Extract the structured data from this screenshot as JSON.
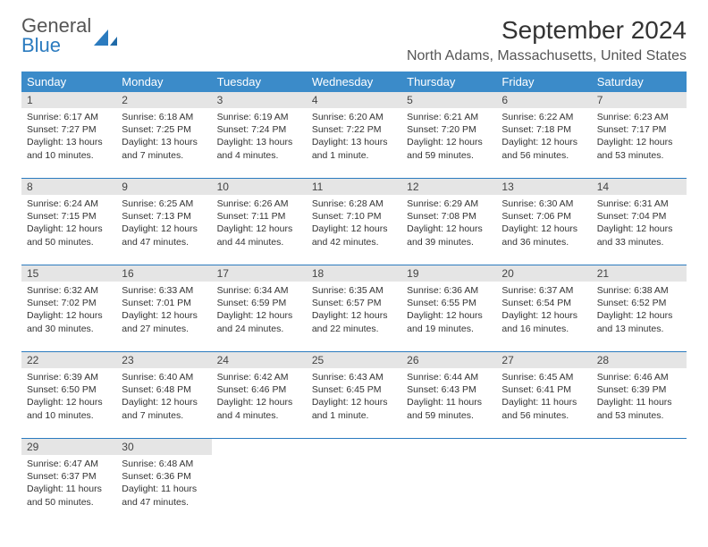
{
  "logo": {
    "text1": "General",
    "text2": "Blue"
  },
  "title": "September 2024",
  "location": "North Adams, Massachusetts, United States",
  "colors": {
    "header_bg": "#3b8bc9",
    "header_text": "#ffffff",
    "daynum_bg": "#e5e5e5",
    "rule": "#2b7bbf",
    "logo_accent": "#2b7bbf"
  },
  "day_headers": [
    "Sunday",
    "Monday",
    "Tuesday",
    "Wednesday",
    "Thursday",
    "Friday",
    "Saturday"
  ],
  "weeks": [
    {
      "nums": [
        "1",
        "2",
        "3",
        "4",
        "5",
        "6",
        "7"
      ],
      "cells": [
        {
          "sunrise": "Sunrise: 6:17 AM",
          "sunset": "Sunset: 7:27 PM",
          "day1": "Daylight: 13 hours",
          "day2": "and 10 minutes."
        },
        {
          "sunrise": "Sunrise: 6:18 AM",
          "sunset": "Sunset: 7:25 PM",
          "day1": "Daylight: 13 hours",
          "day2": "and 7 minutes."
        },
        {
          "sunrise": "Sunrise: 6:19 AM",
          "sunset": "Sunset: 7:24 PM",
          "day1": "Daylight: 13 hours",
          "day2": "and 4 minutes."
        },
        {
          "sunrise": "Sunrise: 6:20 AM",
          "sunset": "Sunset: 7:22 PM",
          "day1": "Daylight: 13 hours",
          "day2": "and 1 minute."
        },
        {
          "sunrise": "Sunrise: 6:21 AM",
          "sunset": "Sunset: 7:20 PM",
          "day1": "Daylight: 12 hours",
          "day2": "and 59 minutes."
        },
        {
          "sunrise": "Sunrise: 6:22 AM",
          "sunset": "Sunset: 7:18 PM",
          "day1": "Daylight: 12 hours",
          "day2": "and 56 minutes."
        },
        {
          "sunrise": "Sunrise: 6:23 AM",
          "sunset": "Sunset: 7:17 PM",
          "day1": "Daylight: 12 hours",
          "day2": "and 53 minutes."
        }
      ]
    },
    {
      "nums": [
        "8",
        "9",
        "10",
        "11",
        "12",
        "13",
        "14"
      ],
      "cells": [
        {
          "sunrise": "Sunrise: 6:24 AM",
          "sunset": "Sunset: 7:15 PM",
          "day1": "Daylight: 12 hours",
          "day2": "and 50 minutes."
        },
        {
          "sunrise": "Sunrise: 6:25 AM",
          "sunset": "Sunset: 7:13 PM",
          "day1": "Daylight: 12 hours",
          "day2": "and 47 minutes."
        },
        {
          "sunrise": "Sunrise: 6:26 AM",
          "sunset": "Sunset: 7:11 PM",
          "day1": "Daylight: 12 hours",
          "day2": "and 44 minutes."
        },
        {
          "sunrise": "Sunrise: 6:28 AM",
          "sunset": "Sunset: 7:10 PM",
          "day1": "Daylight: 12 hours",
          "day2": "and 42 minutes."
        },
        {
          "sunrise": "Sunrise: 6:29 AM",
          "sunset": "Sunset: 7:08 PM",
          "day1": "Daylight: 12 hours",
          "day2": "and 39 minutes."
        },
        {
          "sunrise": "Sunrise: 6:30 AM",
          "sunset": "Sunset: 7:06 PM",
          "day1": "Daylight: 12 hours",
          "day2": "and 36 minutes."
        },
        {
          "sunrise": "Sunrise: 6:31 AM",
          "sunset": "Sunset: 7:04 PM",
          "day1": "Daylight: 12 hours",
          "day2": "and 33 minutes."
        }
      ]
    },
    {
      "nums": [
        "15",
        "16",
        "17",
        "18",
        "19",
        "20",
        "21"
      ],
      "cells": [
        {
          "sunrise": "Sunrise: 6:32 AM",
          "sunset": "Sunset: 7:02 PM",
          "day1": "Daylight: 12 hours",
          "day2": "and 30 minutes."
        },
        {
          "sunrise": "Sunrise: 6:33 AM",
          "sunset": "Sunset: 7:01 PM",
          "day1": "Daylight: 12 hours",
          "day2": "and 27 minutes."
        },
        {
          "sunrise": "Sunrise: 6:34 AM",
          "sunset": "Sunset: 6:59 PM",
          "day1": "Daylight: 12 hours",
          "day2": "and 24 minutes."
        },
        {
          "sunrise": "Sunrise: 6:35 AM",
          "sunset": "Sunset: 6:57 PM",
          "day1": "Daylight: 12 hours",
          "day2": "and 22 minutes."
        },
        {
          "sunrise": "Sunrise: 6:36 AM",
          "sunset": "Sunset: 6:55 PM",
          "day1": "Daylight: 12 hours",
          "day2": "and 19 minutes."
        },
        {
          "sunrise": "Sunrise: 6:37 AM",
          "sunset": "Sunset: 6:54 PM",
          "day1": "Daylight: 12 hours",
          "day2": "and 16 minutes."
        },
        {
          "sunrise": "Sunrise: 6:38 AM",
          "sunset": "Sunset: 6:52 PM",
          "day1": "Daylight: 12 hours",
          "day2": "and 13 minutes."
        }
      ]
    },
    {
      "nums": [
        "22",
        "23",
        "24",
        "25",
        "26",
        "27",
        "28"
      ],
      "cells": [
        {
          "sunrise": "Sunrise: 6:39 AM",
          "sunset": "Sunset: 6:50 PM",
          "day1": "Daylight: 12 hours",
          "day2": "and 10 minutes."
        },
        {
          "sunrise": "Sunrise: 6:40 AM",
          "sunset": "Sunset: 6:48 PM",
          "day1": "Daylight: 12 hours",
          "day2": "and 7 minutes."
        },
        {
          "sunrise": "Sunrise: 6:42 AM",
          "sunset": "Sunset: 6:46 PM",
          "day1": "Daylight: 12 hours",
          "day2": "and 4 minutes."
        },
        {
          "sunrise": "Sunrise: 6:43 AM",
          "sunset": "Sunset: 6:45 PM",
          "day1": "Daylight: 12 hours",
          "day2": "and 1 minute."
        },
        {
          "sunrise": "Sunrise: 6:44 AM",
          "sunset": "Sunset: 6:43 PM",
          "day1": "Daylight: 11 hours",
          "day2": "and 59 minutes."
        },
        {
          "sunrise": "Sunrise: 6:45 AM",
          "sunset": "Sunset: 6:41 PM",
          "day1": "Daylight: 11 hours",
          "day2": "and 56 minutes."
        },
        {
          "sunrise": "Sunrise: 6:46 AM",
          "sunset": "Sunset: 6:39 PM",
          "day1": "Daylight: 11 hours",
          "day2": "and 53 minutes."
        }
      ]
    },
    {
      "nums": [
        "29",
        "30",
        "",
        "",
        "",
        "",
        ""
      ],
      "cells": [
        {
          "sunrise": "Sunrise: 6:47 AM",
          "sunset": "Sunset: 6:37 PM",
          "day1": "Daylight: 11 hours",
          "day2": "and 50 minutes."
        },
        {
          "sunrise": "Sunrise: 6:48 AM",
          "sunset": "Sunset: 6:36 PM",
          "day1": "Daylight: 11 hours",
          "day2": "and 47 minutes."
        },
        {
          "empty": true
        },
        {
          "empty": true
        },
        {
          "empty": true
        },
        {
          "empty": true
        },
        {
          "empty": true
        }
      ]
    }
  ]
}
